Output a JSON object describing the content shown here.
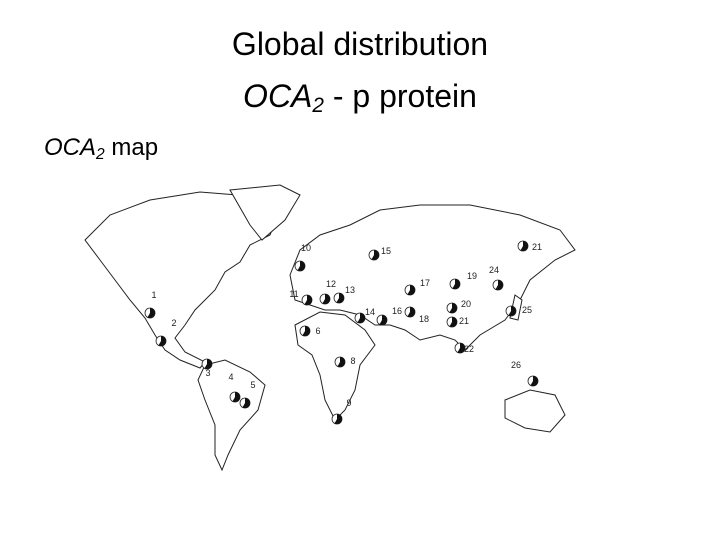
{
  "title": {
    "line1": "Global distribution",
    "gene": "OCA",
    "subscript": "2",
    "rest": " - p protein"
  },
  "map_label": {
    "gene": "OCA",
    "subscript": "2",
    "rest": " map"
  },
  "points": [
    "1",
    "2",
    "3",
    "4",
    "5",
    "6",
    "8",
    "9",
    "10",
    "11",
    "12",
    "13",
    "14",
    "15",
    "16",
    "17",
    "18",
    "19",
    "20",
    "21",
    "21",
    "22",
    "24",
    "25",
    "26"
  ]
}
